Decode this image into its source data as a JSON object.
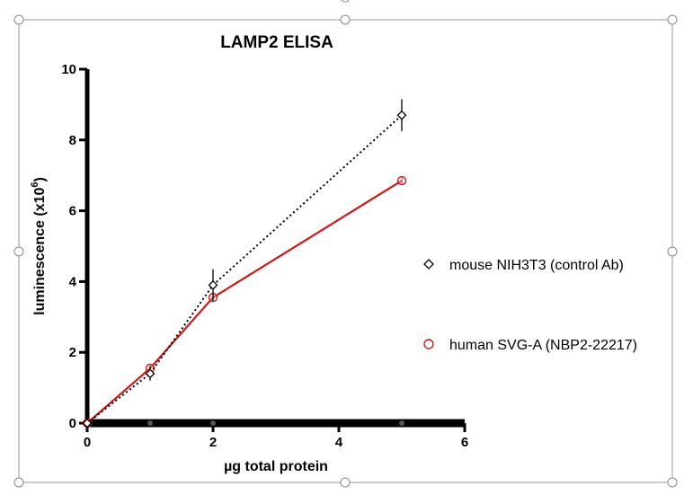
{
  "chart_data": {
    "type": "line",
    "title": "LAMP2 ELISA",
    "xlabel": "µg total protein",
    "ylabel": "luminescence (x10",
    "ylabel_superscript": "6",
    "ylabel_suffix": ")",
    "xlim": [
      0,
      6
    ],
    "ylim": [
      0,
      10
    ],
    "x_ticks": [
      0,
      2,
      4,
      6
    ],
    "y_ticks": [
      0,
      2,
      4,
      6,
      8,
      10
    ],
    "grid": false,
    "legend_position": "right",
    "series": [
      {
        "name": "mouse NIH3T3 (control Ab)",
        "color": "#000000",
        "marker": "diamond",
        "line_style": "dotted",
        "x": [
          0,
          1,
          2,
          5
        ],
        "y": [
          0,
          1.4,
          3.9,
          8.7
        ],
        "error": [
          0,
          0.2,
          0.45,
          0.45
        ]
      },
      {
        "name": "human SVG-A (NBP2-22217)",
        "color": "#cc1a1a",
        "marker": "circle",
        "line_style": "solid",
        "x": [
          0,
          1,
          2,
          5
        ],
        "y": [
          0,
          1.55,
          3.55,
          6.85
        ],
        "error": [
          0,
          0.1,
          0.1,
          0.1
        ]
      }
    ],
    "baseline_points_x": [
      0,
      1,
      2,
      5
    ]
  }
}
